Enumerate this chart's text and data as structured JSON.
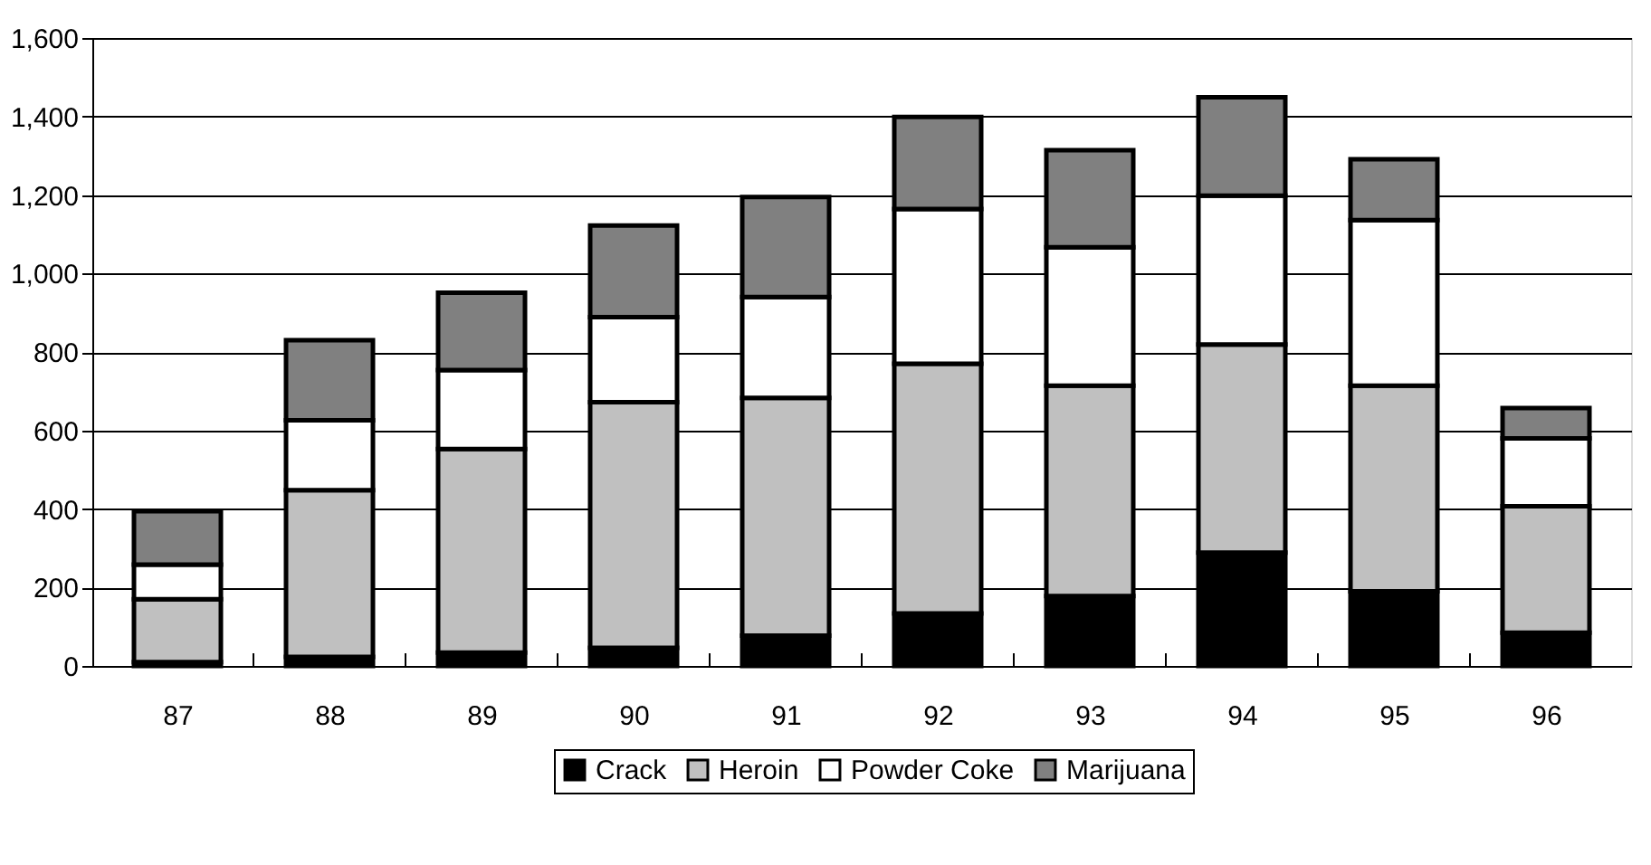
{
  "chart_data": {
    "type": "bar",
    "stacked": true,
    "categories": [
      "87",
      "88",
      "89",
      "90",
      "91",
      "92",
      "93",
      "94",
      "95",
      "96"
    ],
    "series": [
      {
        "name": "Crack",
        "color": "#000000",
        "values": [
          10,
          23,
          34,
          46,
          77,
          134,
          178,
          289,
          190,
          85
        ]
      },
      {
        "name": "Heroin",
        "color": "#c0c0c0",
        "values": [
          160,
          425,
          519,
          626,
          606,
          636,
          536,
          530,
          524,
          322
        ]
      },
      {
        "name": "Powder Coke",
        "color": "#ffffff",
        "values": [
          88,
          178,
          201,
          217,
          257,
          394,
          353,
          379,
          422,
          173
        ]
      },
      {
        "name": "Marijuana",
        "color": "#808080",
        "values": [
          136,
          204,
          197,
          233,
          255,
          235,
          247,
          251,
          155,
          77
        ]
      }
    ],
    "ylim": [
      0,
      1600
    ],
    "yticks": [
      0,
      200,
      400,
      600,
      800,
      {
        "value": 1000,
        "label": "1,000"
      },
      {
        "value": 1200,
        "label": "1,200"
      },
      {
        "value": 1400,
        "label": "1,400"
      },
      {
        "value": 1600,
        "label": "1,600"
      }
    ],
    "grid": "y",
    "legend": "bottom"
  }
}
